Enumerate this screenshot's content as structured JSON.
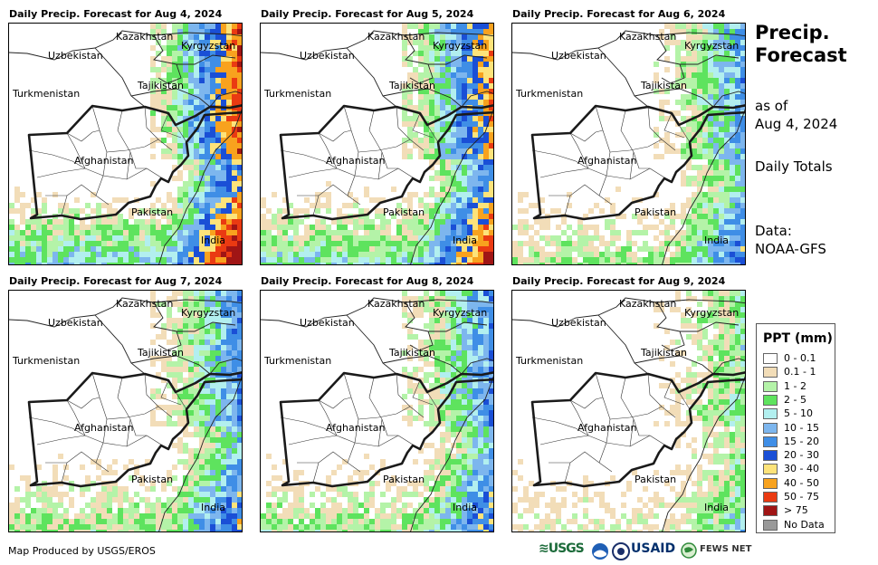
{
  "panels": [
    {
      "title": "Daily Precip. Forecast for Aug 4, 2024",
      "intensity": 0.95
    },
    {
      "title": "Daily Precip. Forecast for Aug 5, 2024",
      "intensity": 0.85
    },
    {
      "title": "Daily Precip. Forecast for Aug 6, 2024",
      "intensity": 0.55
    },
    {
      "title": "Daily Precip. Forecast for Aug 7, 2024",
      "intensity": 0.6
    },
    {
      "title": "Daily Precip. Forecast for Aug 8, 2024",
      "intensity": 0.6
    },
    {
      "title": "Daily Precip. Forecast for Aug 9, 2024",
      "intensity": 0.35
    }
  ],
  "country_labels": {
    "uzbekistan": "Uzbekistan",
    "kazakhstan": "Kazakhstan",
    "kyrgyzstan": "Kyrgyzstan",
    "tajikistan": "Tajikistan",
    "turkmenistan": "Turkmenistan",
    "afghanistan": "Afghanistan",
    "pakistan": "Pakistan",
    "india": "India"
  },
  "sidebar": {
    "title_line1": "Precip.",
    "title_line2": "Forecast",
    "asof_line1": "as of",
    "asof_line2": "Aug 4, 2024",
    "totals": "Daily Totals",
    "data_line1": "Data:",
    "data_line2": "NOAA-GFS"
  },
  "legend": {
    "title": "PPT (mm)",
    "items": [
      {
        "label": "0 - 0.1",
        "color": "#ffffff"
      },
      {
        "label": "0.1 - 1",
        "color": "#f2ddb8"
      },
      {
        "label": "1 - 2",
        "color": "#b4f3a8"
      },
      {
        "label": "2 - 5",
        "color": "#5ee35e"
      },
      {
        "label": "5 - 10",
        "color": "#b2efef"
      },
      {
        "label": "10 - 15",
        "color": "#7db6ee"
      },
      {
        "label": "15 - 20",
        "color": "#3f8ee6"
      },
      {
        "label": "20 - 30",
        "color": "#1a4fd6"
      },
      {
        "label": "30 - 40",
        "color": "#fde37a"
      },
      {
        "label": "40 - 50",
        "color": "#f8a21e"
      },
      {
        "label": "50 - 75",
        "color": "#ea3a12"
      },
      {
        "label": "> 75",
        "color": "#a01515"
      },
      {
        "label": "No Data",
        "color": "#999999"
      }
    ]
  },
  "credit": "Map Produced by USGS/EROS",
  "logos": {
    "usgs": "≋USGS",
    "noaa": "NOAA",
    "state": "DOS",
    "usaid": "USAID",
    "fews": "FEWS NET"
  }
}
